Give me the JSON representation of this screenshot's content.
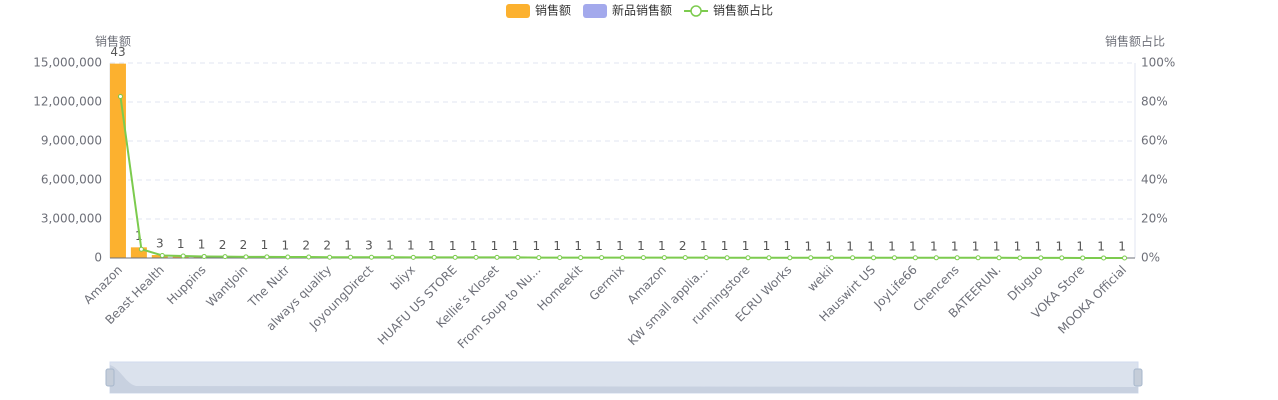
{
  "chart_data": {
    "type": "bar",
    "y_axis_label": "销售额",
    "y2_axis_label": "销售额占比",
    "categories": [
      "Amazon",
      null,
      "Beast Health",
      null,
      "Huppins",
      null,
      "WantJoin",
      null,
      "The Nutr",
      null,
      "always quality",
      null,
      "JoyoungDirect",
      null,
      "bliyx",
      null,
      "HUAFU US STORE",
      null,
      "Kellie's Kloset",
      null,
      "From Soup to Nu...",
      null,
      "Homeekit",
      null,
      "Germix",
      null,
      "Amazon",
      null,
      "KW small applia...",
      null,
      "runningstore",
      null,
      "ECRU Works",
      null,
      "wekii",
      null,
      "Hauswirt US",
      null,
      "JoyLife66",
      null,
      "Chencens",
      null,
      "BATEERUN.",
      null,
      "Dfuguo",
      null,
      "VOKA Store",
      null,
      "MOOKA Official"
    ],
    "counts": [
      43,
      1,
      3,
      1,
      1,
      2,
      2,
      1,
      1,
      2,
      2,
      1,
      3,
      1,
      1,
      1,
      1,
      1,
      1,
      1,
      1,
      1,
      1,
      1,
      1,
      1,
      1,
      2,
      1,
      1,
      1,
      1,
      1,
      1,
      1,
      1,
      1,
      1,
      1,
      1,
      1,
      1,
      1,
      1,
      1,
      1,
      1,
      1,
      1
    ],
    "series": [
      {
        "name": "销售额",
        "color": "#fcb12f",
        "values": [
          14950000,
          820000,
          230000,
          180000,
          150000,
          130000,
          110000,
          100000,
          90000,
          85000,
          80000,
          75000,
          70000,
          65000,
          60000,
          55000,
          52000,
          50000,
          48000,
          46000,
          44000,
          42000,
          40000,
          38000,
          36000,
          34000,
          32000,
          30000,
          28000,
          26000,
          24000,
          22000,
          20000,
          19000,
          18000,
          17000,
          16000,
          15000,
          14000,
          13000,
          12000,
          11000,
          10000,
          9000,
          8000,
          7000,
          6000,
          5000,
          4000
        ]
      },
      {
        "name": "新品销售额",
        "color": "#a3a9ec",
        "values": [
          null,
          null,
          null,
          null,
          null,
          null,
          null,
          null,
          null,
          null,
          null,
          null,
          null,
          null,
          null,
          null,
          null,
          null,
          null,
          null,
          null,
          null,
          null,
          null,
          null,
          null,
          null,
          null,
          null,
          null,
          null,
          null,
          null,
          null,
          null,
          null,
          null,
          null,
          null,
          null,
          null,
          null,
          null,
          null,
          null,
          null,
          null,
          null,
          null
        ]
      },
      {
        "name": "销售额占比",
        "color": "#7ccb4e",
        "type": "line",
        "axis": "y2",
        "values": [
          82.8,
          4.5,
          1.3,
          1.0,
          0.8,
          0.7,
          0.6,
          0.6,
          0.5,
          0.5,
          0.4,
          0.4,
          0.4,
          0.4,
          0.3,
          0.3,
          0.3,
          0.3,
          0.3,
          0.3,
          0.2,
          0.2,
          0.2,
          0.2,
          0.2,
          0.2,
          0.2,
          0.2,
          0.2,
          0.1,
          0.1,
          0.1,
          0.1,
          0.1,
          0.1,
          0.1,
          0.1,
          0.1,
          0.1,
          0.1,
          0.1,
          0.1,
          0.1,
          0.05,
          0.04,
          0.04,
          0.03,
          0.03,
          0.02
        ]
      }
    ],
    "ylim": [
      0,
      15000000
    ],
    "yticks": [
      0,
      {
        "value": 3000000,
        "label": "3,000,000"
      },
      {
        "value": 6000000,
        "label": "6,000,000"
      },
      {
        "value": 9000000,
        "label": "9,000,000"
      },
      {
        "value": 12000000,
        "label": "12,000,000"
      },
      {
        "value": 15000000,
        "label": "15,000,000"
      }
    ],
    "y2lim": [
      0,
      100
    ],
    "y2ticks": [
      {
        "value": 0,
        "label": "0%"
      },
      {
        "value": 20,
        "label": "20%"
      },
      {
        "value": 40,
        "label": "40%"
      },
      {
        "value": 60,
        "label": "60%"
      },
      {
        "value": 80,
        "label": "80%"
      },
      {
        "value": 100,
        "label": "100%"
      }
    ],
    "grid": true,
    "legend": "top"
  }
}
